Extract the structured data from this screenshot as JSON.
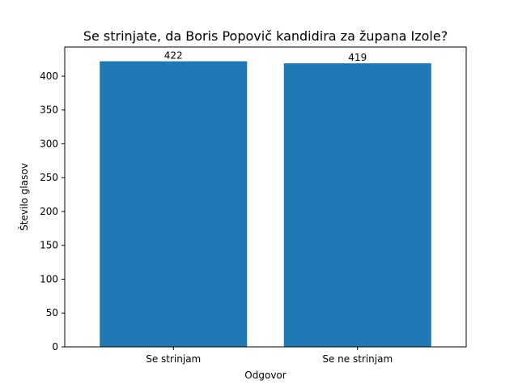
{
  "chart_data": {
    "type": "bar",
    "title": "Se strinjate, da Boris Popovič kandidira za župana Izole?",
    "xlabel": "Odgovor",
    "ylabel": "Število glasov",
    "categories": [
      "Se strinjam",
      "Se ne strinjam"
    ],
    "values": [
      422,
      419
    ],
    "data_labels": [
      "422",
      "419"
    ],
    "ylim": [
      0,
      443.1
    ],
    "yticks": [
      0,
      50,
      100,
      150,
      200,
      250,
      300,
      350,
      400
    ],
    "ytick_labels": [
      "0",
      "50",
      "100",
      "150",
      "200",
      "250",
      "300",
      "350",
      "400"
    ],
    "grid": false,
    "legend": "none",
    "bar_color": "#1f77b4"
  }
}
